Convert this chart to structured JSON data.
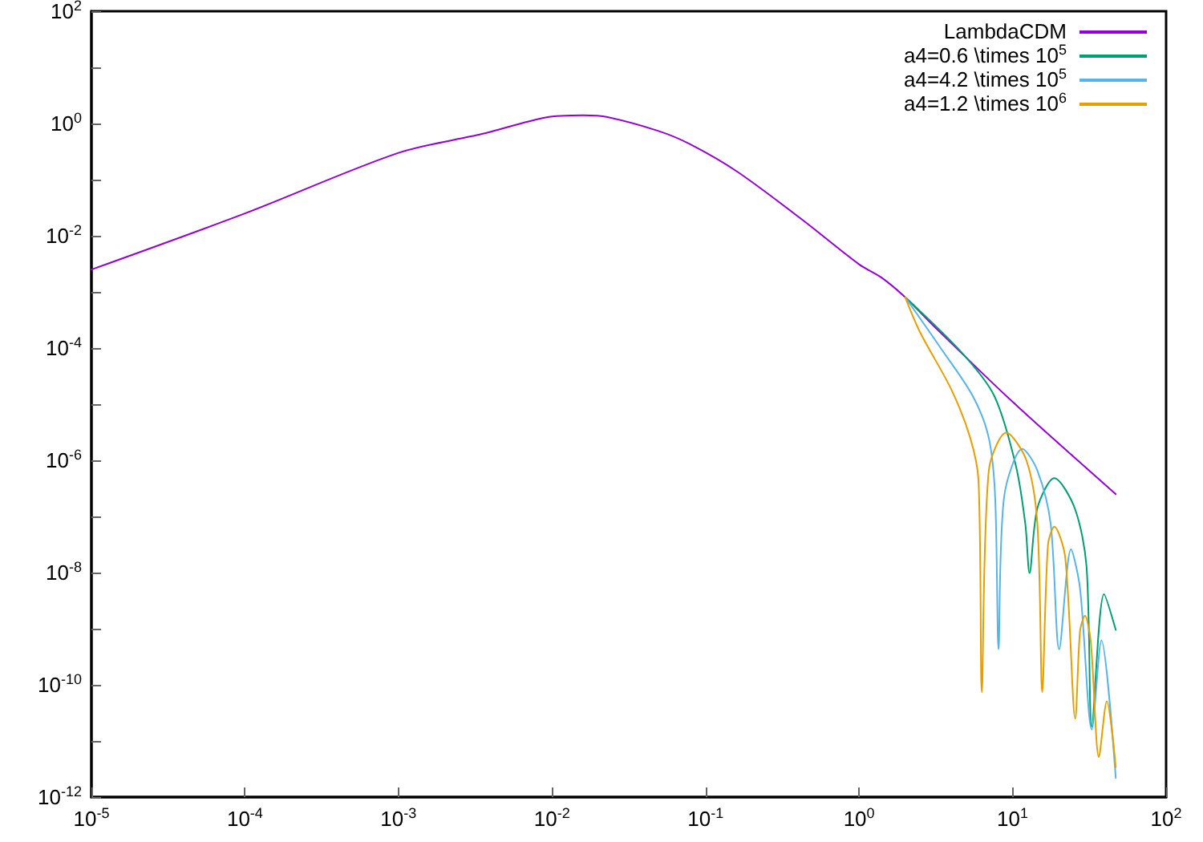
{
  "chart_data": {
    "type": "line",
    "log": "xy",
    "grid": false,
    "legend": "top right",
    "marker": "none",
    "line_style": "solid",
    "xlim": [
      1e-05,
      100
    ],
    "ylim": [
      1e-12,
      100
    ],
    "xticks": [
      {
        "value": 1e-05,
        "label": "10$^{-5}$"
      },
      {
        "value": 0.0001,
        "label": "10$^{-4}$"
      },
      {
        "value": 0.001,
        "label": "10$^{-3}$"
      },
      {
        "value": 0.01,
        "label": "10$^{-2}$"
      },
      {
        "value": 0.1,
        "label": "10$^{-1}$"
      },
      {
        "value": 1,
        "label": "10$^{0}$"
      },
      {
        "value": 10,
        "label": "10$^{1}$"
      },
      {
        "value": 100,
        "label": "10$^{2}$"
      }
    ],
    "yticks": [
      {
        "value": 1e-12,
        "label": "10$^{-12}$"
      },
      {
        "value": 1e-11,
        "label": null
      },
      {
        "value": 1e-10,
        "label": "10$^{-10}$"
      },
      {
        "value": 1e-09,
        "label": null
      },
      {
        "value": 1e-08,
        "label": "10$^{-8}$"
      },
      {
        "value": 1e-07,
        "label": null
      },
      {
        "value": 1e-06,
        "label": "10$^{-6}$"
      },
      {
        "value": 1e-05,
        "label": null
      },
      {
        "value": 0.0001,
        "label": "10$^{-4}$"
      },
      {
        "value": 0.001,
        "label": null
      },
      {
        "value": 0.01,
        "label": "10$^{-2}$"
      },
      {
        "value": 0.1,
        "label": null
      },
      {
        "value": 1,
        "label": "10$^{0}$"
      },
      {
        "value": 10,
        "label": null
      },
      {
        "value": 100,
        "label": "10$^{2}$"
      }
    ],
    "series": [
      {
        "name": "LambdaCDM",
        "color": "#9400d3",
        "x": [
          1e-05,
          0.0001,
          0.001,
          0.0035,
          0.0091,
          0.016,
          0.023,
          0.049,
          0.079,
          0.16,
          0.43,
          1,
          1.4,
          2,
          3.2,
          10,
          47
        ],
        "values": [
          0.0025,
          0.025,
          0.3,
          0.65,
          1.28,
          1.4,
          1.3,
          0.74,
          0.43,
          0.14,
          0.019,
          0.0031,
          0.0018,
          0.0008,
          0.00022,
          1.1e-05,
          2.5e-07
        ]
      },
      {
        "name": "a4=0.6 \\times 10$^{5}$",
        "color": "#009e73",
        "x": [
          2,
          4.7,
          7.6,
          10.5,
          12.1,
          12.9,
          14.5,
          18.7,
          25.4,
          30.3,
          32.8,
          39.4,
          47
        ],
        "values": [
          0.0008,
          8.1e-05,
          1.4e-05,
          8.1e-07,
          7.4e-08,
          9.8e-09,
          1.4e-07,
          4.8e-07,
          1.4e-07,
          1.3e-08,
          1.8e-11,
          4.1e-09,
          9.5e-10
        ]
      },
      {
        "name": "a4=4.2 \\times 10$^{5}$",
        "color": "#56b4e9",
        "x": [
          2,
          3.4,
          5.5,
          7,
          7.7,
          8.1,
          8.8,
          11.6,
          14.5,
          17.7,
          20.1,
          24,
          27.5,
          32.8,
          37.9,
          47
        ],
        "values": [
          0.0008,
          0.0001,
          1.4e-05,
          2.5e-06,
          2.2e-07,
          4.3e-10,
          2.2e-07,
          1.6e-06,
          6.6e-07,
          7.4e-08,
          4.3e-10,
          2.6e-08,
          5.2e-09,
          1.6e-11,
          6.2e-10,
          2.2e-12
        ]
      },
      {
        "name": "a4=1.2 \\times 10$^{6}$",
        "color": "#e69f00",
        "x": [
          2,
          2.5,
          4,
          5.3,
          6,
          6.3,
          7,
          9.1,
          12.3,
          14.5,
          15.6,
          17,
          18.7,
          22,
          25.6,
          27.5,
          29.6,
          32.3,
          36.5,
          41.1,
          47
        ],
        "values": [
          0.0008,
          0.00019,
          1.8e-05,
          2.5e-06,
          4.3e-07,
          7.4e-11,
          6.6e-07,
          3.1e-06,
          1e-06,
          7.4e-08,
          7.4e-11,
          3.1e-08,
          6.6e-08,
          1.9e-08,
          2.5e-11,
          9.1e-10,
          1.7e-09,
          5.9e-10,
          5.2e-12,
          5.1e-11,
          3.4e-12
        ]
      }
    ]
  }
}
